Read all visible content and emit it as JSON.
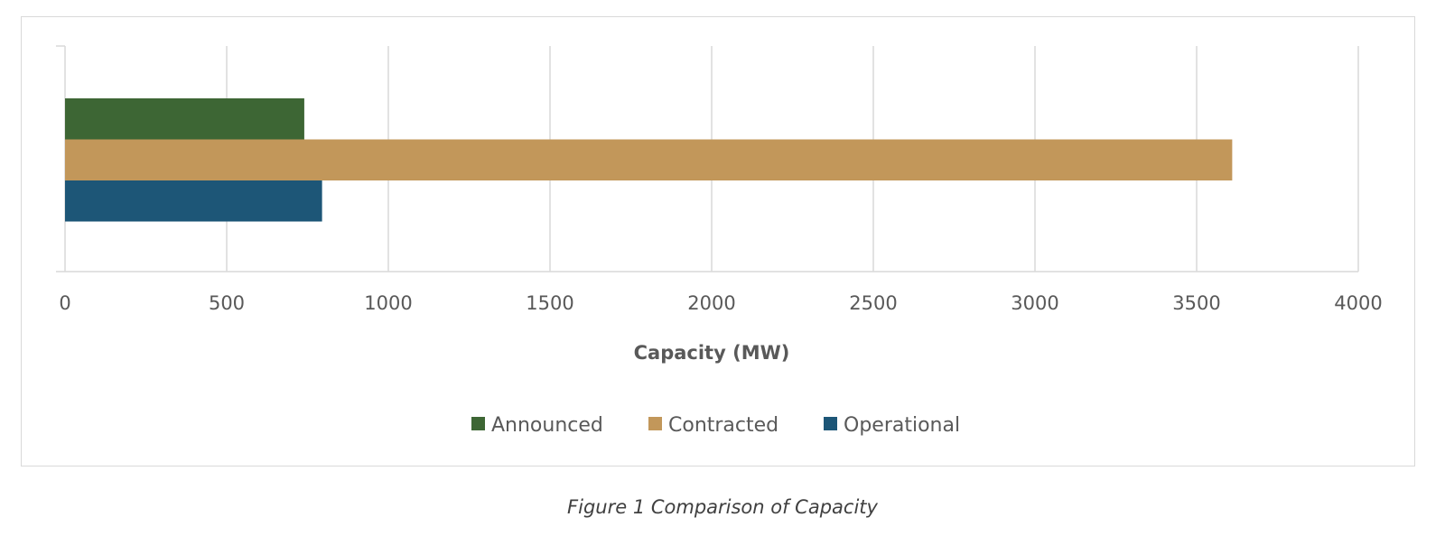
{
  "chart_data": {
    "type": "bar",
    "orientation": "horizontal",
    "categories": [
      ""
    ],
    "series": [
      {
        "name": "Announced",
        "values": [
          740
        ],
        "color": "#3d6634"
      },
      {
        "name": "Contracted",
        "values": [
          3610
        ],
        "color": "#c2975a"
      },
      {
        "name": "Operational",
        "values": [
          795
        ],
        "color": "#1d5677"
      }
    ],
    "xlabel": "Capacity (MW)",
    "xlim": [
      0,
      4000
    ],
    "xticks": [
      "0",
      "500",
      "1000",
      "1500",
      "2000",
      "2500",
      "3000",
      "3500",
      "4000"
    ],
    "grid": true,
    "legend": "bottom"
  },
  "caption": "Figure 1 Comparison of Capacity"
}
